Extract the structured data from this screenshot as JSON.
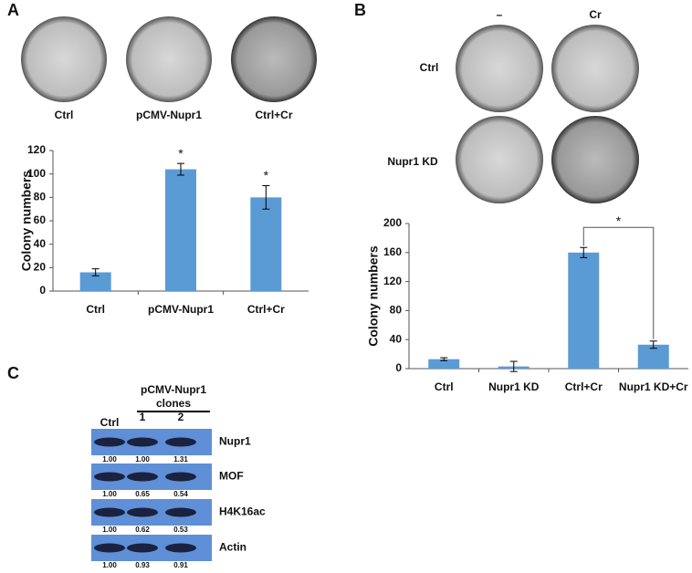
{
  "panels": {
    "a": "A",
    "b": "B",
    "c": "C"
  },
  "panel_a_plates": [
    "Ctrl",
    "pCMV-Nupr1",
    "Ctrl+Cr"
  ],
  "panel_b_plates": {
    "columns": [
      "–",
      "Cr"
    ],
    "rows": [
      "Ctrl",
      "Nupr1 KD"
    ]
  },
  "chart_data": [
    {
      "type": "bar",
      "y_label": "Colony numbers",
      "categories": [
        "Ctrl",
        "pCMV-Nupr1",
        "Ctrl+Cr"
      ],
      "values": [
        16,
        104,
        80
      ],
      "errors": [
        3,
        5,
        10
      ],
      "significance": [
        null,
        "*",
        "*"
      ],
      "color": "#5b9bd5",
      "ylim": [
        0,
        120
      ],
      "yticks": [
        0,
        20,
        40,
        60,
        80,
        100,
        120
      ],
      "grid": false
    },
    {
      "type": "bar",
      "y_label": "Colony numbers",
      "categories": [
        "Ctrl",
        "Nupr1 KD",
        "Ctrl+Cr",
        "Nupr1 KD+Cr"
      ],
      "values": [
        13,
        3,
        160,
        33
      ],
      "errors": [
        2,
        7,
        7,
        5
      ],
      "comparisons": [
        {
          "categories": [
            "Ctrl+Cr",
            "Nupr1 KD+Cr"
          ],
          "label": "*"
        }
      ],
      "color": "#5b9bd5",
      "ylim": [
        0,
        200
      ],
      "yticks": [
        0,
        40,
        80,
        120,
        160,
        200
      ],
      "grid": false
    }
  ],
  "blot": {
    "group_label": [
      "pCMV-Nupr1",
      "clones"
    ],
    "lanes": [
      "Ctrl",
      "1",
      "2"
    ],
    "rows": [
      {
        "name": "Nupr1",
        "quantification": [
          "1.00",
          "1.00",
          "1.31"
        ]
      },
      {
        "name": "MOF",
        "quantification": [
          "1.00",
          "0.65",
          "0.54"
        ]
      },
      {
        "name": "H4K16ac",
        "quantification": [
          "1.00",
          "0.62",
          "0.53"
        ]
      },
      {
        "name": "Actin",
        "quantification": [
          "1.00",
          "0.93",
          "0.91"
        ]
      }
    ]
  }
}
